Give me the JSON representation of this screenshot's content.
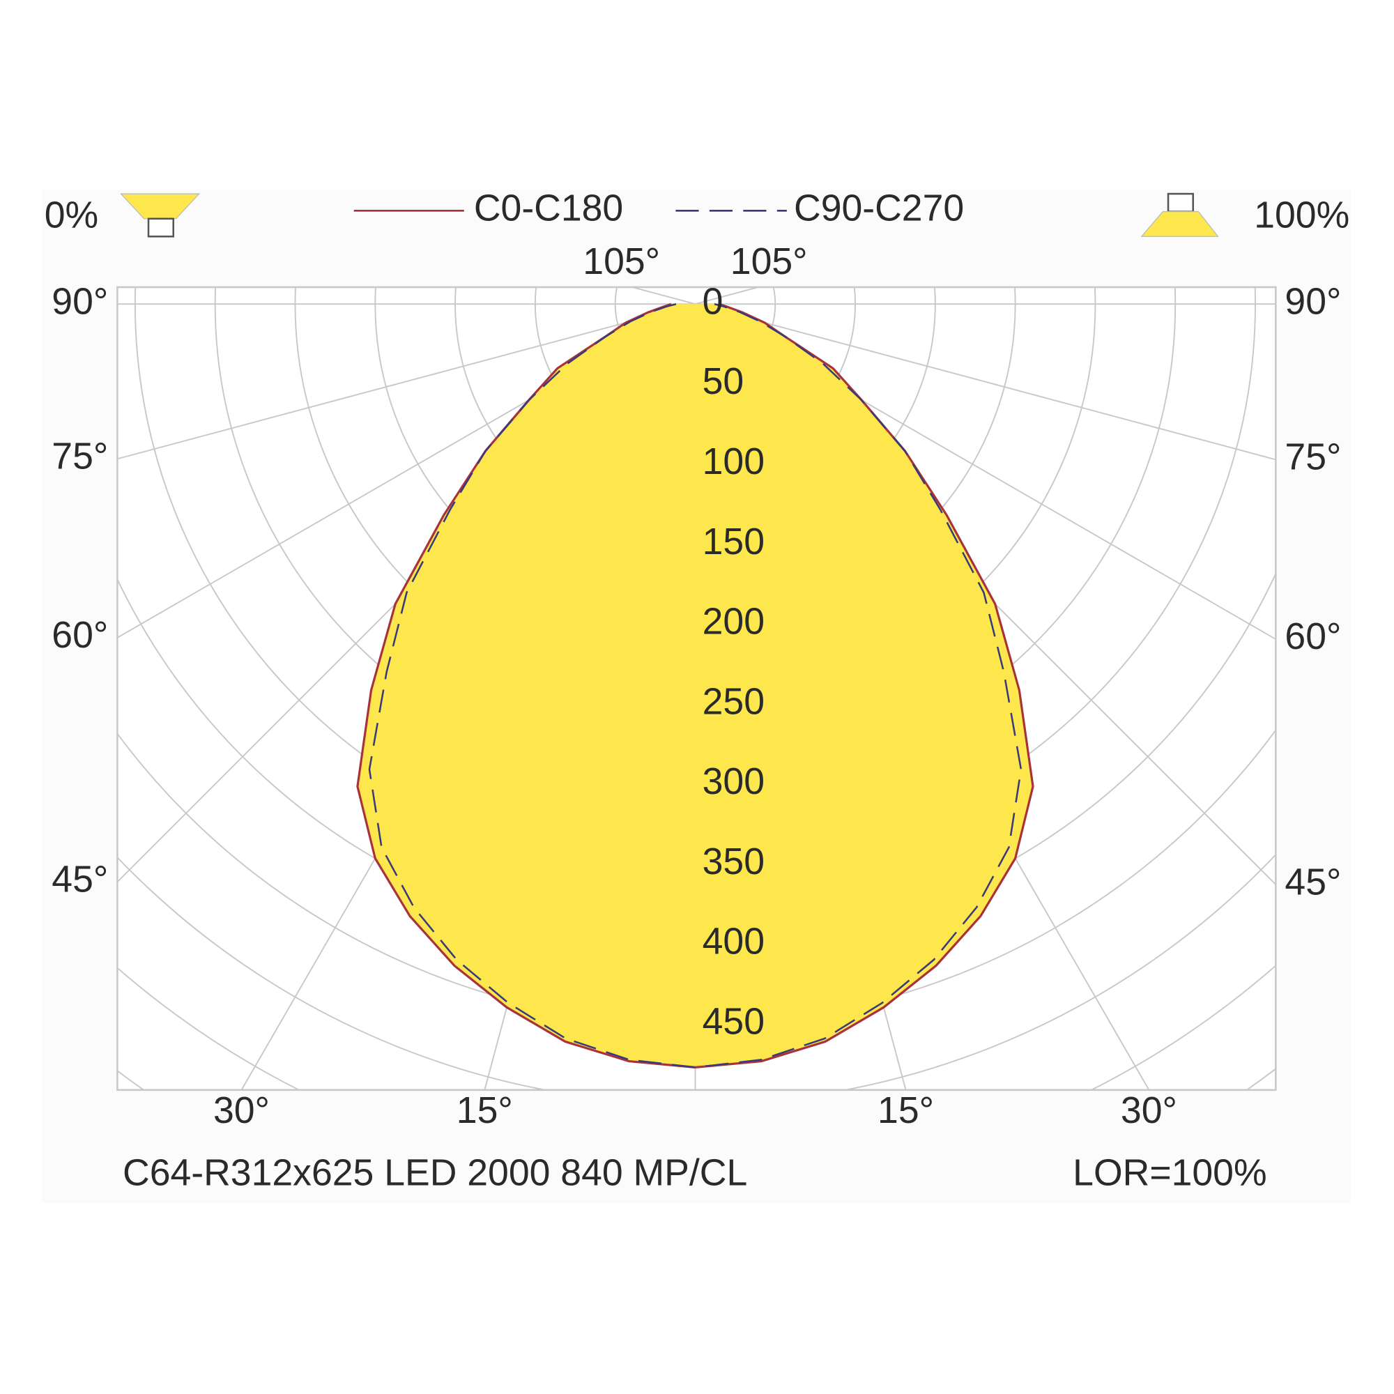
{
  "chart_data": {
    "type": "polar",
    "upward_label": "0%",
    "downward_label": "100%",
    "subtitle": "C64-R312x625 LED 2000 840 MP/CL",
    "annotation": "LOR=100%",
    "theta": [
      -90,
      -85,
      -80,
      -75,
      -70,
      -65,
      -60,
      -55,
      -50,
      -45,
      -40,
      -35,
      -30,
      -25,
      -20,
      -15,
      -10,
      -5,
      0,
      5,
      10,
      15,
      20,
      25,
      30,
      35,
      40,
      45,
      50,
      55,
      60,
      65,
      70,
      75,
      80,
      85,
      90
    ],
    "series": [
      {
        "name": "C0-C180",
        "color": "#a8323c",
        "dash": false,
        "fill": "#fde74c",
        "values": [
          15,
          20,
          30,
          45,
          60,
          95,
          120,
          160,
          205,
          265,
          315,
          368,
          400,
          422,
          440,
          455,
          468,
          475,
          477,
          475,
          468,
          455,
          440,
          422,
          400,
          368,
          315,
          265,
          205,
          160,
          120,
          95,
          60,
          45,
          30,
          20,
          15
        ]
      },
      {
        "name": "C90-C270",
        "color": "#3a3a7a",
        "dash": true,
        "values": [
          12,
          18,
          28,
          42,
          60,
          88,
          120,
          160,
          200,
          255,
          300,
          355,
          392,
          416,
          436,
          452,
          466,
          474,
          477,
          474,
          466,
          452,
          436,
          416,
          392,
          355,
          300,
          255,
          200,
          160,
          120,
          88,
          60,
          42,
          28,
          18,
          12
        ]
      }
    ],
    "rticks": [
      0,
      50,
      100,
      150,
      200,
      250,
      300,
      350,
      400,
      450,
      {
        "value": 500,
        "label": null
      },
      {
        "value": 550,
        "label": null
      },
      {
        "value": 600,
        "label": null
      }
    ],
    "angle_ticks": [
      {
        "value": -105,
        "label": "105°"
      },
      {
        "value": -90,
        "label": "90°"
      },
      {
        "value": -75,
        "label": "75°"
      },
      {
        "value": -60,
        "label": "60°"
      },
      {
        "value": -45,
        "label": "45°"
      },
      {
        "value": -30,
        "label": "30°"
      },
      {
        "value": -15,
        "label": "15°"
      },
      {
        "value": 0,
        "label": null
      },
      {
        "value": 15,
        "label": "15°"
      },
      {
        "value": 30,
        "label": "30°"
      },
      {
        "value": 45,
        "label": "45°"
      },
      {
        "value": 60,
        "label": "60°"
      },
      {
        "value": 75,
        "label": "75°"
      },
      {
        "value": 90,
        "label": "90°"
      },
      {
        "value": 105,
        "label": "105°"
      }
    ],
    "grid": true
  }
}
